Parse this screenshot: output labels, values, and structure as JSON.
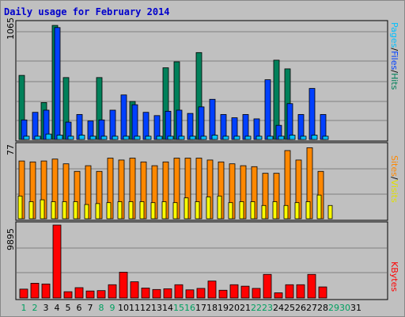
{
  "title": "Daily usage for February 2014",
  "legend": {
    "hits": "Hits",
    "files": "Files",
    "pages": "Pages",
    "visits": "Visits",
    "sites": "Sites",
    "kbytes": "KBytes",
    "sep": "/"
  },
  "colors": {
    "hits": "#00805a",
    "files": "#0040ff",
    "pages": "#00c0ff",
    "visits": "#ffff00",
    "sites": "#ff8800",
    "kbytes": "#ff0000",
    "weekday_label": "#008000",
    "weekend_label": "#00a060"
  },
  "chart_data": [
    {
      "type": "bar",
      "name": "hits-files-pages",
      "ymax_label": "1065",
      "ylim": [
        0,
        1065
      ],
      "categories": [
        "1",
        "2",
        "3",
        "4",
        "5",
        "6",
        "7",
        "8",
        "9",
        "10",
        "11",
        "12",
        "13",
        "14",
        "15",
        "16",
        "17",
        "18",
        "19",
        "20",
        "21",
        "22",
        "23",
        "24",
        "25",
        "26",
        "27",
        "28",
        "29",
        "30",
        "31"
      ],
      "series": [
        {
          "name": "Hits",
          "values": [
            590,
            0,
            340,
            1050,
            570,
            0,
            0,
            570,
            0,
            0,
            350,
            0,
            0,
            660,
            715,
            0,
            800,
            0,
            0,
            0,
            0,
            0,
            0,
            730,
            650,
            0,
            0,
            0,
            0,
            0,
            0
          ]
        },
        {
          "name": "Files",
          "values": [
            180,
            250,
            270,
            1030,
            160,
            230,
            170,
            180,
            270,
            410,
            320,
            250,
            220,
            260,
            270,
            240,
            300,
            370,
            230,
            200,
            230,
            190,
            550,
            130,
            330,
            230,
            470,
            230,
            0,
            0,
            0
          ]
        },
        {
          "name": "Pages",
          "values": [
            30,
            30,
            50,
            40,
            30,
            40,
            30,
            30,
            30,
            30,
            30,
            30,
            30,
            30,
            30,
            30,
            30,
            40,
            30,
            30,
            30,
            30,
            30,
            30,
            40,
            30,
            40,
            30,
            0,
            0,
            0
          ]
        }
      ]
    },
    {
      "type": "bar",
      "name": "visits-sites",
      "ymax_label": "77",
      "ylim": [
        0,
        77
      ],
      "categories": [
        "1",
        "2",
        "3",
        "4",
        "5",
        "6",
        "7",
        "8",
        "9",
        "10",
        "11",
        "12",
        "13",
        "14",
        "15",
        "16",
        "17",
        "18",
        "19",
        "20",
        "21",
        "22",
        "23",
        "24",
        "25",
        "26",
        "27",
        "28",
        "29",
        "30",
        "31"
      ],
      "series": [
        {
          "name": "Visits",
          "values": [
            24,
            18,
            20,
            18,
            18,
            18,
            15,
            16,
            17,
            18,
            18,
            18,
            17,
            18,
            17,
            22,
            18,
            23,
            24,
            17,
            18,
            18,
            14,
            18,
            14,
            17,
            18,
            25,
            14,
            0,
            0
          ]
        },
        {
          "name": "Sites",
          "values": [
            61,
            60,
            61,
            63,
            58,
            50,
            56,
            50,
            64,
            62,
            64,
            60,
            56,
            60,
            64,
            64,
            64,
            62,
            60,
            58,
            56,
            55,
            48,
            48,
            72,
            62,
            75,
            50,
            0,
            0,
            0
          ]
        }
      ]
    },
    {
      "type": "bar",
      "name": "kbytes",
      "ymax_label": "9895",
      "ylim": [
        0,
        9895
      ],
      "categories": [
        "1",
        "2",
        "3",
        "4",
        "5",
        "6",
        "7",
        "8",
        "9",
        "10",
        "11",
        "12",
        "13",
        "14",
        "15",
        "16",
        "17",
        "18",
        "19",
        "20",
        "21",
        "22",
        "23",
        "24",
        "25",
        "26",
        "27",
        "28",
        "29",
        "30",
        "31"
      ],
      "series": [
        {
          "name": "KBytes",
          "values": [
            1200,
            2000,
            1900,
            9895,
            850,
            1400,
            950,
            1000,
            1800,
            3500,
            2200,
            1350,
            1150,
            1250,
            1800,
            1100,
            1300,
            2300,
            1050,
            1800,
            1600,
            1300,
            3200,
            700,
            1800,
            1800,
            3200,
            1500,
            0,
            0,
            0
          ]
        }
      ]
    }
  ],
  "days": [
    {
      "label": "1",
      "weekend": true
    },
    {
      "label": "2",
      "weekend": true
    },
    {
      "label": "3",
      "weekend": false
    },
    {
      "label": "4",
      "weekend": false
    },
    {
      "label": "5",
      "weekend": false
    },
    {
      "label": "6",
      "weekend": false
    },
    {
      "label": "7",
      "weekend": false
    },
    {
      "label": "8",
      "weekend": true
    },
    {
      "label": "9",
      "weekend": true
    },
    {
      "label": "10",
      "weekend": false
    },
    {
      "label": "11",
      "weekend": false
    },
    {
      "label": "12",
      "weekend": false
    },
    {
      "label": "13",
      "weekend": false
    },
    {
      "label": "14",
      "weekend": false
    },
    {
      "label": "15",
      "weekend": true
    },
    {
      "label": "16",
      "weekend": true
    },
    {
      "label": "17",
      "weekend": false
    },
    {
      "label": "18",
      "weekend": false
    },
    {
      "label": "19",
      "weekend": false
    },
    {
      "label": "20",
      "weekend": false
    },
    {
      "label": "21",
      "weekend": false
    },
    {
      "label": "22",
      "weekend": true
    },
    {
      "label": "23",
      "weekend": true
    },
    {
      "label": "24",
      "weekend": false
    },
    {
      "label": "25",
      "weekend": false
    },
    {
      "label": "26",
      "weekend": false
    },
    {
      "label": "27",
      "weekend": false
    },
    {
      "label": "28",
      "weekend": false
    },
    {
      "label": "29",
      "weekend": true
    },
    {
      "label": "30",
      "weekend": true
    },
    {
      "label": "31",
      "weekend": false
    }
  ]
}
